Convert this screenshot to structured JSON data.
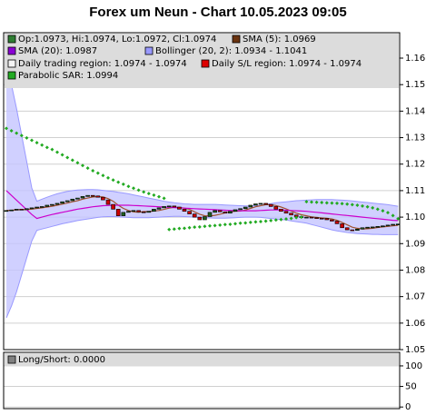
{
  "chart_data": [
    {
      "type": "candlestick",
      "title": "Forex um Neun - Chart 10.05.2023 09:05",
      "categories": [
        null,
        null,
        null,
        null,
        null,
        null,
        null,
        null,
        null,
        null,
        null,
        null,
        null,
        null,
        null,
        null,
        null,
        null,
        null,
        null,
        null,
        null,
        null,
        null,
        null,
        null,
        null,
        null,
        null,
        null,
        null,
        null,
        null,
        null,
        null,
        null,
        null,
        null,
        null,
        null,
        null,
        null,
        null,
        null,
        null,
        null,
        null,
        null,
        null,
        null,
        null,
        null,
        null,
        null,
        null,
        null,
        null,
        null,
        null,
        null,
        null,
        null,
        null,
        null,
        null,
        null,
        null,
        null,
        null,
        null,
        null,
        null,
        null,
        null,
        null,
        null,
        null,
        null
      ],
      "candles": {
        "name": "Op:1.0973, Hi:1.0974, Lo:1.0972, Cl:1.0974",
        "color": "#2e7d32",
        "up_color": "#1f5f1f",
        "down_color": "#cc0000",
        "open": [
          1.1022,
          1.1025,
          1.1027,
          1.103,
          1.1028,
          1.1032,
          1.1035,
          1.1038,
          1.104,
          1.1045,
          1.1048,
          1.1052,
          1.1058,
          1.1062,
          1.1068,
          1.1072,
          1.1078,
          1.1082,
          1.108,
          1.1075,
          1.1065,
          1.1048,
          1.103,
          1.1005,
          1.1018,
          1.1022,
          1.1025,
          1.102,
          1.1018,
          1.1022,
          1.103,
          1.1035,
          1.104,
          1.1042,
          1.1038,
          1.103,
          1.1022,
          1.1012,
          1.1,
          1.099,
          1.1002,
          1.1018,
          1.1025,
          1.102,
          1.1015,
          1.1022,
          1.1028,
          1.1032,
          1.1038,
          1.1045,
          1.105,
          1.1052,
          1.1048,
          1.104,
          1.103,
          1.1022,
          1.1015,
          1.1008,
          1.1002,
          1.0998,
          1.1,
          1.0998,
          1.0996,
          1.0995,
          1.099,
          1.0985,
          1.0975,
          1.096,
          1.0952,
          1.095,
          1.0955,
          1.096,
          1.0962,
          1.0963,
          1.0965,
          1.0967,
          1.097,
          1.0973
        ],
        "close": [
          1.1025,
          1.1027,
          1.103,
          1.1028,
          1.1032,
          1.1035,
          1.1038,
          1.104,
          1.1045,
          1.1048,
          1.1052,
          1.1058,
          1.1062,
          1.1068,
          1.1072,
          1.1078,
          1.1082,
          1.108,
          1.1075,
          1.1065,
          1.1048,
          1.103,
          1.1005,
          1.1018,
          1.1022,
          1.1025,
          1.102,
          1.1018,
          1.1022,
          1.103,
          1.1035,
          1.104,
          1.1042,
          1.1038,
          1.103,
          1.1022,
          1.1012,
          1.1,
          1.099,
          1.1002,
          1.1018,
          1.1025,
          1.102,
          1.1015,
          1.1022,
          1.1028,
          1.1032,
          1.1038,
          1.1045,
          1.105,
          1.1052,
          1.1048,
          1.104,
          1.103,
          1.1022,
          1.1015,
          1.1008,
          1.1002,
          1.0998,
          1.1,
          1.0998,
          1.0996,
          1.0995,
          1.099,
          1.0985,
          1.0975,
          1.096,
          1.0952,
          1.095,
          1.0955,
          1.096,
          1.0962,
          1.0963,
          1.0965,
          1.0967,
          1.097,
          1.0973,
          1.0974
        ]
      },
      "series": [
        {
          "name": "SMA (5): 1.0969",
          "color": "#6b3410",
          "line_color": "#a0522d",
          "values": [
            1.1025,
            1.1026,
            1.1027,
            1.1028,
            1.1028,
            1.103,
            1.1033,
            1.1035,
            1.1038,
            1.1041,
            1.1045,
            1.1049,
            1.1053,
            1.1058,
            1.1062,
            1.1068,
            1.1072,
            1.1076,
            1.1077,
            1.1076,
            1.107,
            1.106,
            1.1045,
            1.1033,
            1.1025,
            1.102,
            1.1018,
            1.1021,
            1.1021,
            1.1023,
            1.1025,
            1.1029,
            1.1034,
            1.1037,
            1.1037,
            1.1034,
            1.1029,
            1.102,
            1.1011,
            1.1005,
            1.1004,
            1.1007,
            1.1011,
            1.1016,
            1.102,
            1.1022,
            1.1023,
            1.1027,
            1.1033,
            1.1039,
            1.1043,
            1.1047,
            1.1047,
            1.1044,
            1.1038,
            1.1031,
            1.1023,
            1.1015,
            1.1009,
            1.1005,
            1.1001,
            1.0999,
            1.0997,
            1.0996,
            1.0993,
            1.0988,
            1.098,
            1.0971,
            1.0962,
            1.0958,
            1.0955,
            1.0956,
            1.0958,
            1.0961,
            1.0963,
            1.0965,
            1.0967,
            1.0969
          ]
        },
        {
          "name": "SMA (20): 1.0987",
          "color": "#8a00d4",
          "line_color": "#cc00cc",
          "values": [
            1.11,
            1.1082,
            1.1064,
            1.1046,
            1.1028,
            1.101,
            1.0995,
            1.1,
            1.1005,
            1.101,
            1.1014,
            1.1018,
            1.1022,
            1.1026,
            1.103,
            1.1033,
            1.1036,
            1.1039,
            1.1041,
            1.1043,
            1.1044,
            1.1045,
            1.1045,
            1.1045,
            1.1045,
            1.1044,
            1.1043,
            1.1042,
            1.1041,
            1.104,
            1.1039,
            1.1038,
            1.1037,
            1.1036,
            1.1035,
            1.1034,
            1.1033,
            1.1032,
            1.1031,
            1.103,
            1.1029,
            1.1028,
            1.1027,
            1.1026,
            1.1025,
            1.1025,
            1.1024,
            1.1024,
            1.1024,
            1.1024,
            1.1025,
            1.1026,
            1.1027,
            1.1027,
            1.1027,
            1.1026,
            1.1025,
            1.1024,
            1.1023,
            1.1022,
            1.102,
            1.1018,
            1.1016,
            1.1014,
            1.1012,
            1.101,
            1.1008,
            1.1006,
            1.1004,
            1.1002,
            1.1,
            1.0998,
            1.0996,
            1.0994,
            1.0992,
            1.099,
            1.0988,
            1.0987
          ]
        }
      ],
      "band": {
        "name": "Bollinger (20, 2): 1.0934 - 1.1041",
        "color": "#9999ff",
        "fill": "#c4c4ff",
        "upper": [
          1.158,
          1.15,
          1.141,
          1.131,
          1.121,
          1.111,
          1.106,
          1.1068,
          1.1075,
          1.1082,
          1.1088,
          1.1093,
          1.1097,
          1.11,
          1.1102,
          1.1103,
          1.1104,
          1.1104,
          1.1103,
          1.1101,
          1.1099,
          1.1097,
          1.1094,
          1.1091,
          1.1088,
          1.1084,
          1.108,
          1.1076,
          1.1072,
          1.1068,
          1.1064,
          1.106,
          1.1057,
          1.1054,
          1.1052,
          1.105,
          1.1049,
          1.1048,
          1.1048,
          1.1048,
          1.1048,
          1.1048,
          1.1047,
          1.1046,
          1.1045,
          1.1044,
          1.1043,
          1.1042,
          1.1042,
          1.1043,
          1.1045,
          1.1048,
          1.1051,
          1.1054,
          1.1056,
          1.1058,
          1.106,
          1.1062,
          1.1063,
          1.1064,
          1.1065,
          1.1066,
          1.1066,
          1.1066,
          1.1066,
          1.1065,
          1.1064,
          1.1063,
          1.1061,
          1.1059,
          1.1057,
          1.1055,
          1.1053,
          1.1051,
          1.1049,
          1.1047,
          1.1044,
          1.1041
        ],
        "lower": [
          1.062,
          1.0664,
          1.0718,
          1.0782,
          1.0846,
          1.091,
          1.095,
          1.0955,
          1.096,
          1.0965,
          1.097,
          1.0975,
          1.0979,
          1.0983,
          1.0987,
          1.099,
          1.0993,
          1.0996,
          1.0999,
          1.1001,
          1.1002,
          1.1002,
          1.1001,
          1.1,
          1.0999,
          1.0998,
          1.0998,
          1.0998,
          1.0998,
          1.0999,
          1.1,
          1.1001,
          1.1002,
          1.1003,
          1.1003,
          1.1002,
          1.1001,
          1.1,
          1.0999,
          1.0998,
          1.0997,
          1.0996,
          1.0996,
          1.0996,
          1.0997,
          1.0998,
          1.0999,
          1.1,
          1.1,
          1.1,
          1.0999,
          1.0997,
          1.0995,
          1.0993,
          1.0991,
          1.0989,
          1.0986,
          1.0983,
          1.098,
          1.0977,
          1.0972,
          1.0967,
          1.0962,
          1.0957,
          1.0952,
          1.0948,
          1.0945,
          1.0942,
          1.094,
          1.0938,
          1.0937,
          1.0936,
          1.0935,
          1.0935,
          1.0934,
          1.0934,
          1.0934,
          1.0934
        ]
      },
      "regions": [
        {
          "name": "Daily trading region: 1.0974 - 1.0974",
          "color": "#f4f4f4"
        },
        {
          "name": "Daily S/L region: 1.0974 - 1.0974",
          "color": "#dd0000"
        }
      ],
      "sar": {
        "name": "Parabolic SAR: 1.0994",
        "color": "#22aa22",
        "values": [
          1.1335,
          1.1326,
          1.1317,
          1.1308,
          1.1299,
          1.129,
          1.1281,
          1.1272,
          1.1263,
          1.1255,
          1.1245,
          1.1235,
          1.1225,
          1.1215,
          1.1205,
          1.1195,
          1.1185,
          1.1175,
          1.1166,
          1.1157,
          1.1148,
          1.114,
          1.1132,
          1.1124,
          1.1116,
          1.1109,
          1.1102,
          1.1095,
          1.1089,
          1.1083,
          1.1077,
          1.1071,
          1.0953,
          1.0955,
          1.0957,
          1.0958,
          1.096,
          1.0962,
          1.0963,
          1.0965,
          1.0967,
          1.0968,
          1.097,
          1.0972,
          1.0973,
          1.0975,
          1.0977,
          1.0978,
          1.098,
          1.0982,
          1.0983,
          1.0985,
          1.0987,
          1.0989,
          1.0991,
          1.0993,
          1.0995,
          1.0998,
          1.1,
          1.1058,
          1.1057,
          1.1056,
          1.1055,
          1.1054,
          1.1053,
          1.1052,
          1.1051,
          1.1049,
          1.1047,
          1.1045,
          1.1042,
          1.1039,
          1.1035,
          1.103,
          1.1024,
          1.1017,
          1.1006,
          1.0994
        ]
      },
      "ylim": [
        1.05,
        1.1696
      ],
      "yticks": [
        1.05,
        1.06,
        1.07,
        1.08,
        1.09,
        {
          "value": 1.1,
          "label": "1.10"
        },
        1.11,
        1.12,
        1.13,
        1.14,
        1.15,
        1.16
      ],
      "grid": true
    },
    {
      "type": "line",
      "legend": "Long/Short: 0.0000",
      "legend_color": "#808080",
      "ylim": [
        -4,
        133
      ],
      "yticks": [
        0,
        50,
        100
      ],
      "grid": true
    }
  ]
}
